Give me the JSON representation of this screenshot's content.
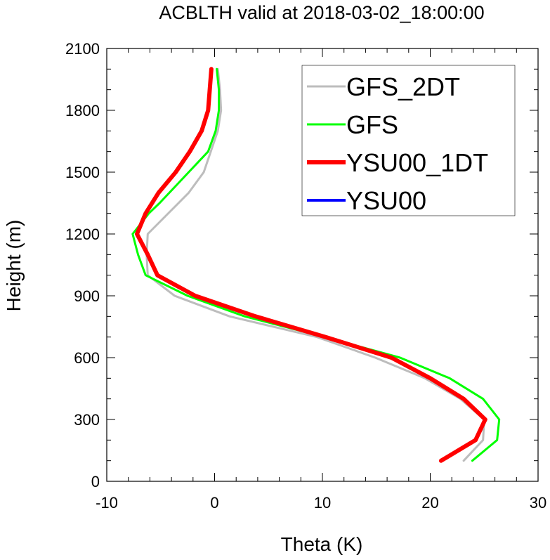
{
  "chart_data": {
    "type": "line",
    "title": "ACBLTH valid at 2018-03-02_18:00:00",
    "xlabel": "Theta (K)",
    "ylabel": "Height (m)",
    "xlim": [
      -10,
      30
    ],
    "ylim": [
      0,
      2100
    ],
    "xticks": [
      -10,
      0,
      10,
      20,
      30
    ],
    "yticks": [
      0,
      300,
      600,
      900,
      1200,
      1500,
      1800,
      2100
    ],
    "xtick_labels": [
      "-10",
      "0",
      "10",
      "20",
      "30"
    ],
    "ytick_labels": [
      "0",
      "300",
      "600",
      "900",
      "1200",
      "1500",
      "1800",
      "2100"
    ],
    "grid": false,
    "legend_position": "top-right",
    "series": [
      {
        "name": "GFS_2DT",
        "color": "#bdbdbd",
        "width": 3,
        "x": [
          23.1,
          24.9,
          25.0,
          22.8,
          19.5,
          14.9,
          9.5,
          1.4,
          -3.7,
          -6.2,
          -6.3,
          -6.2,
          -2.4,
          -1.0,
          0.3,
          0.6,
          0.5,
          0.3
        ],
        "y": [
          100,
          200,
          300,
          400,
          500,
          600,
          700,
          800,
          900,
          1000,
          1100,
          1200,
          1400,
          1500,
          1700,
          1800,
          1900,
          2000
        ]
      },
      {
        "name": "GFS",
        "color": "#00ff00",
        "width": 3,
        "x": [
          23.9,
          26.2,
          26.4,
          24.9,
          21.8,
          17.2,
          10.2,
          2.8,
          -2.5,
          -6.4,
          -7.1,
          -7.6,
          -6.1,
          -5.1,
          -2.4,
          -0.6,
          0.1,
          0.4,
          0.4,
          0.2
        ],
        "y": [
          100,
          200,
          300,
          400,
          500,
          600,
          700,
          800,
          900,
          1000,
          1100,
          1200,
          1300,
          1350,
          1500,
          1600,
          1700,
          1800,
          1900,
          2000
        ]
      },
      {
        "name": "YSU00_1DT",
        "color": "#ff0000",
        "width": 6,
        "x": [
          21.0,
          24.2,
          25.1,
          23.1,
          20.0,
          16.4,
          10.3,
          3.8,
          -1.8,
          -5.3,
          -6.2,
          -7.2,
          -6.4,
          -5.2,
          -3.6,
          -2.3,
          -1.2,
          -0.6,
          -0.3
        ],
        "y": [
          100,
          200,
          300,
          400,
          500,
          600,
          700,
          800,
          900,
          1000,
          1100,
          1200,
          1300,
          1400,
          1500,
          1600,
          1700,
          1800,
          2000
        ]
      },
      {
        "name": "YSU00",
        "color": "#0000ff",
        "width": 4,
        "x": [],
        "y": []
      }
    ]
  }
}
